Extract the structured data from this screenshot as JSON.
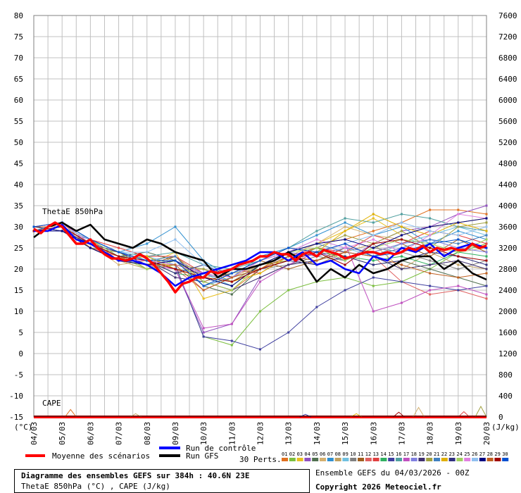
{
  "chart_data": {
    "type": "line",
    "left_axis": {
      "unit": "(°C)",
      "ticks": [
        80,
        75,
        70,
        65,
        60,
        55,
        50,
        45,
        40,
        35,
        30,
        25,
        20,
        15,
        10,
        5,
        0,
        -5,
        -10,
        -15
      ],
      "range": [
        -15,
        80
      ]
    },
    "right_axis": {
      "unit": "(J/kg)",
      "ticks": [
        7600,
        7200,
        6800,
        6400,
        6000,
        5600,
        5200,
        4800,
        4400,
        4000,
        3600,
        3200,
        2800,
        2400,
        2000,
        1600,
        1200,
        800,
        400,
        0
      ],
      "range": [
        0,
        7600
      ]
    },
    "x_labels": [
      "04/03",
      "05/03",
      "06/03",
      "07/03",
      "08/03",
      "09/03",
      "10/03",
      "11/03",
      "12/03",
      "13/03",
      "14/03",
      "15/03",
      "16/03",
      "17/03",
      "18/03",
      "19/03",
      "20/03"
    ],
    "panel_labels": {
      "thetae": "ThetaE 850hPa",
      "cape": "CAPE"
    },
    "mean_series": {
      "name": "Moyenne des scénarios",
      "x": [
        0,
        0.25,
        0.5,
        0.75,
        1,
        1.25,
        1.5,
        1.75,
        2,
        2.25,
        2.5,
        2.75,
        3,
        3.25,
        3.5,
        3.75,
        4,
        4.25,
        4.5,
        4.75,
        5,
        5.25,
        5.5,
        5.75,
        6,
        6.25,
        6.5,
        6.75,
        7,
        7.25,
        7.5,
        7.75,
        8,
        8.25,
        8.5,
        8.75,
        9,
        9.25,
        9.5,
        9.75,
        10,
        10.25,
        10.5,
        10.75,
        11,
        11.25,
        11.5,
        11.75,
        12,
        12.25,
        12.5,
        12.75,
        13,
        13.25,
        13.5,
        13.75,
        14,
        14.25,
        14.5,
        14.75,
        15,
        15.25,
        15.5,
        15.75,
        16
      ],
      "y": [
        29.5,
        28.5,
        30,
        31,
        30,
        28,
        26,
        26,
        27,
        25,
        23.5,
        22.5,
        22.5,
        22,
        22.5,
        23.5,
        22.5,
        21,
        19,
        17,
        14.5,
        16.5,
        17,
        18,
        18,
        19.5,
        19,
        19.5,
        20,
        21,
        21.5,
        22,
        23,
        23,
        24,
        23.5,
        23.5,
        22,
        23.5,
        24,
        23,
        24.5,
        24,
        23.5,
        22.5,
        23,
        23.5,
        24,
        24,
        23.5,
        24,
        23.5,
        24,
        25,
        24.5,
        25.5,
        24,
        25,
        24.5,
        25,
        24.5,
        24.5,
        26,
        25,
        25.5
      ]
    },
    "control_series": {
      "name": "Run de contrôle",
      "x": [
        0,
        0.5,
        1,
        1.5,
        2,
        2.5,
        3,
        3.5,
        4,
        4.5,
        5,
        5.5,
        6,
        6.5,
        7,
        7.5,
        8,
        8.5,
        9,
        9.5,
        10,
        10.5,
        11,
        11.5,
        12,
        12.5,
        13,
        13.5,
        14,
        14.5,
        15,
        15.5,
        16
      ],
      "y": [
        29,
        29,
        30.5,
        27,
        26,
        24,
        22,
        22,
        21,
        19,
        16,
        18,
        19,
        20,
        21,
        22,
        24,
        24,
        22,
        24,
        21,
        22,
        20,
        19,
        23,
        22,
        25,
        24,
        26,
        23,
        25,
        26,
        25
      ]
    },
    "gfs_series": {
      "name": "Run GFS",
      "x": [
        0,
        0.5,
        1,
        1.5,
        2,
        2.5,
        3,
        3.5,
        4,
        4.5,
        5,
        5.5,
        6,
        6.5,
        7,
        7.5,
        8,
        8.5,
        9,
        9.5,
        10,
        10.5,
        11,
        11.5,
        12,
        12.5,
        13,
        13.5,
        14,
        14.5,
        15,
        15.5,
        16
      ],
      "y": [
        27.5,
        30,
        31,
        29,
        30.5,
        27,
        26,
        25,
        27,
        26,
        24,
        23,
        22,
        18,
        20,
        20,
        21,
        22,
        24,
        22,
        17,
        20,
        18,
        21,
        19,
        20,
        22,
        23,
        23,
        20,
        22,
        19,
        17.5
      ]
    },
    "perturbations": {
      "count_label": "30 Perts.",
      "labels": [
        "01",
        "02",
        "03",
        "04",
        "05",
        "06",
        "07",
        "08",
        "09",
        "10",
        "11",
        "12",
        "13",
        "14",
        "15",
        "16",
        "17",
        "18",
        "19",
        "20",
        "21",
        "22",
        "23",
        "24",
        "25",
        "26",
        "27",
        "28",
        "29",
        "30"
      ],
      "colors": [
        "#e07020",
        "#7cbf3f",
        "#e8c020",
        "#9050c0",
        "#507050",
        "#d4b070",
        "#3090d0",
        "#c0a060",
        "#70c0e0",
        "#808080",
        "#a06020",
        "#e06060",
        "#e04040",
        "#30b060",
        "#4040a0",
        "#50a0a0",
        "#c050c0",
        "#8080e0",
        "#403070",
        "#a0a040",
        "#4080c0",
        "#e0b000",
        "#303080",
        "#a0d060",
        "#e080e0",
        "#90c0f0",
        "#000080",
        "#c06020",
        "#a00000",
        "#0050d0"
      ],
      "x": [
        0,
        1,
        2,
        3,
        4,
        5,
        6,
        7,
        8,
        9,
        10,
        11,
        12,
        13,
        14,
        15,
        16
      ],
      "trajectories": [
        [
          30,
          31,
          27,
          22,
          21,
          22,
          17,
          15,
          20,
          24,
          26,
          27,
          29,
          31,
          34,
          34,
          33
        ],
        [
          29,
          30,
          26,
          23,
          20,
          21,
          4,
          2,
          10,
          15,
          17,
          18,
          16,
          17,
          20,
          24,
          26
        ],
        [
          30,
          29,
          25,
          22,
          21,
          24,
          13,
          15,
          21,
          24,
          26,
          29,
          32,
          28,
          30,
          31,
          32
        ],
        [
          29,
          30,
          27,
          24,
          22,
          20,
          5,
          7,
          18,
          21,
          24,
          22,
          26,
          29,
          30,
          33,
          35
        ],
        [
          29,
          31,
          26,
          23,
          24,
          22,
          16,
          14,
          20,
          22,
          24,
          23,
          21,
          22,
          20,
          18,
          16
        ],
        [
          29,
          29,
          26,
          21,
          22,
          19,
          20,
          18,
          21,
          23,
          26,
          30,
          28,
          27,
          25,
          24,
          25
        ],
        [
          30,
          31,
          27,
          24,
          26,
          30,
          22,
          18,
          23,
          25,
          28,
          31,
          28,
          30,
          26,
          29,
          27
        ],
        [
          29,
          29,
          25,
          22,
          20,
          23,
          18,
          19,
          20,
          23,
          21,
          24,
          26,
          20,
          24,
          21,
          20
        ],
        [
          29,
          30,
          27,
          24,
          23,
          21,
          19,
          16,
          21,
          24,
          27,
          25,
          23,
          26,
          28,
          30,
          28
        ],
        [
          30,
          29,
          26,
          22,
          22,
          20,
          19,
          17,
          20,
          21,
          23,
          22,
          25,
          24,
          22,
          20,
          22
        ],
        [
          29,
          29,
          27,
          24,
          21,
          23,
          17,
          19,
          22,
          20,
          22,
          25,
          24,
          26,
          23,
          27,
          24
        ],
        [
          30,
          31,
          25,
          23,
          21,
          20,
          15,
          18,
          22,
          25,
          24,
          26,
          23,
          17,
          14,
          15,
          13
        ],
        [
          29,
          30,
          27,
          25,
          23,
          23,
          19,
          20,
          19,
          23,
          25,
          24,
          28,
          26,
          29,
          28,
          26
        ],
        [
          29,
          29,
          26,
          22,
          22,
          19,
          18,
          16,
          21,
          22,
          25,
          23,
          22,
          23,
          21,
          24,
          23
        ],
        [
          30,
          30,
          25,
          24,
          21,
          21,
          4,
          3,
          1,
          5,
          11,
          15,
          18,
          17,
          16,
          15,
          16
        ],
        [
          29,
          31,
          26,
          23,
          23,
          24,
          21,
          20,
          22,
          25,
          29,
          32,
          31,
          33,
          32,
          30,
          29
        ],
        [
          30,
          30,
          26,
          23,
          21,
          20,
          6,
          7,
          17,
          21,
          24,
          26,
          10,
          12,
          15,
          16,
          14
        ],
        [
          29,
          29,
          27,
          24,
          22,
          22,
          19,
          17,
          21,
          24,
          23,
          25,
          24,
          26,
          27,
          25,
          24
        ],
        [
          29,
          30,
          26,
          22,
          22,
          18,
          17,
          15,
          18,
          21,
          22,
          24,
          23,
          20,
          21,
          22,
          20
        ],
        [
          30,
          30,
          25,
          24,
          20,
          21,
          20,
          17,
          21,
          22,
          25,
          28,
          26,
          29,
          25,
          30,
          31
        ],
        [
          29,
          31,
          27,
          23,
          22,
          23,
          16,
          18,
          22,
          24,
          26,
          24,
          23,
          25,
          27,
          26,
          28
        ],
        [
          29,
          30,
          25,
          22,
          23,
          20,
          18,
          17,
          19,
          23,
          24,
          29,
          33,
          30,
          28,
          31,
          29
        ],
        [
          30,
          29,
          26,
          24,
          22,
          19,
          21,
          18,
          20,
          22,
          21,
          23,
          21,
          22,
          24,
          23,
          21
        ],
        [
          29,
          30,
          27,
          23,
          20,
          22,
          17,
          15,
          21,
          24,
          25,
          22,
          25,
          27,
          26,
          24,
          27
        ],
        [
          30,
          31,
          26,
          22,
          22,
          21,
          19,
          18,
          22,
          24,
          27,
          25,
          27,
          24,
          28,
          33,
          32
        ],
        [
          29,
          30,
          27,
          24,
          24,
          27,
          21,
          19,
          21,
          23,
          24,
          26,
          28,
          31,
          29,
          28,
          30
        ],
        [
          29,
          29,
          25,
          22,
          21,
          22,
          18,
          16,
          21,
          24,
          26,
          27,
          25,
          28,
          30,
          31,
          32
        ],
        [
          30,
          30,
          26,
          23,
          21,
          21,
          15,
          18,
          20,
          23,
          22,
          24,
          23,
          21,
          19,
          18,
          19
        ],
        [
          29,
          30,
          26,
          23,
          22,
          20,
          18,
          17,
          20,
          22,
          24,
          21,
          26,
          27,
          25,
          23,
          22
        ],
        [
          30,
          31,
          27,
          24,
          22,
          22,
          16,
          19,
          22,
          25,
          24,
          26,
          23,
          24,
          26,
          27,
          25
        ]
      ]
    },
    "cape_series": {
      "mean_y_jkg": [
        0,
        0,
        0,
        0,
        0,
        0,
        0,
        0,
        0,
        0,
        0,
        0,
        0,
        0,
        0,
        0,
        0
      ],
      "spike_days": [
        1.3,
        3.6,
        9.6,
        11.4,
        12.9,
        13.6,
        15.2,
        15.8
      ],
      "spike_values_jkg": [
        140,
        60,
        50,
        60,
        90,
        180,
        100,
        200
      ]
    }
  },
  "legend": {
    "mean_label": "Moyenne des scénarios",
    "control_label": "Run de contrôle",
    "gfs_label": "Run GFS",
    "perts_label": "30 Perts.",
    "mean_color": "#ff0000",
    "control_color": "#0000ff",
    "gfs_color": "#000000"
  },
  "info": {
    "title": "Diagramme des ensembles GEFS sur 384h : 40.6N 23E",
    "subtitle": "ThetaE 850hPa (°C) , CAPE (J/kg)",
    "run": "Ensemble GEFS du 04/03/2026 - 00Z",
    "copyright": "Copyright 2026 Meteociel.fr"
  }
}
